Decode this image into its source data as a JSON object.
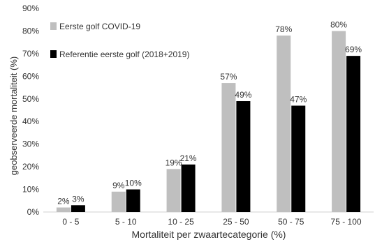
{
  "chart_data": {
    "type": "bar",
    "title": "",
    "xlabel": "Mortaliteit per zwaartecategorie (%)",
    "ylabel": "geobserveerde mortaliteit (%)",
    "categories": [
      "0 - 5",
      "5 - 10",
      "10 - 25",
      "25 - 50",
      "50 - 75",
      "75 - 100"
    ],
    "ylim": [
      0,
      90
    ],
    "yticks": [
      0,
      10,
      20,
      30,
      40,
      50,
      60,
      70,
      80,
      90
    ],
    "ytick_labels": [
      "0%",
      "10%",
      "20%",
      "30%",
      "40%",
      "50%",
      "60%",
      "70%",
      "80%",
      "90%"
    ],
    "grid": false,
    "legend_position": "top-left",
    "series": [
      {
        "name": "Eerste golf COVID-19",
        "color": "#bfbfbf",
        "values": [
          2,
          9,
          19,
          57,
          78,
          80
        ],
        "labels": [
          "2%",
          "9%",
          "19%",
          "57%",
          "78%",
          "80%"
        ]
      },
      {
        "name": "Referentie eerste golf (2018+2019)",
        "color": "#000000",
        "values": [
          3,
          10,
          21,
          49,
          47,
          69
        ],
        "labels": [
          "3%",
          "10%",
          "21%",
          "49%",
          "47%",
          "69%"
        ]
      }
    ]
  }
}
